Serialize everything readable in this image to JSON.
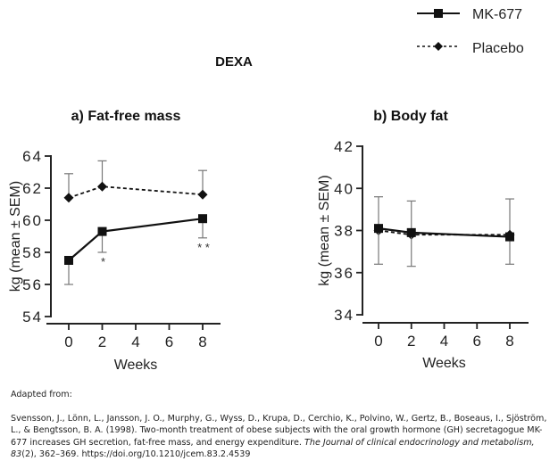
{
  "main_title": "DEXA",
  "legend": [
    {
      "name": "MK-677",
      "style": "solid",
      "marker": "square"
    },
    {
      "name": "Placebo",
      "style": "dashed",
      "marker": "diamond"
    }
  ],
  "chart_data": [
    {
      "type": "line",
      "title": "a)  Fat-free mass",
      "xlabel": "Weeks",
      "ylabel": "kg (mean ± SEM)",
      "x": [
        0,
        2,
        8
      ],
      "xticks": [
        0,
        2,
        4,
        6,
        8
      ],
      "xlim": [
        0,
        8
      ],
      "yticks": [
        54,
        56,
        58,
        60,
        62,
        64
      ],
      "ylim": [
        54,
        64
      ],
      "grid": false,
      "series": [
        {
          "name": "MK-677",
          "values": [
            57.5,
            59.3,
            60.1
          ],
          "error_low": [
            56.0,
            58.0,
            58.9
          ],
          "error_high": [
            null,
            null,
            null
          ]
        },
        {
          "name": "Placebo",
          "values": [
            61.4,
            62.1,
            61.6
          ],
          "error_low": [
            null,
            null,
            null
          ],
          "error_high": [
            62.9,
            63.7,
            63.1
          ]
        }
      ],
      "annotations": [
        {
          "x": 2,
          "text": "*"
        },
        {
          "x": 8,
          "text": "* *"
        }
      ]
    },
    {
      "type": "line",
      "title": "b)  Body fat",
      "xlabel": "Weeks",
      "ylabel": "kg (mean ± SEM)",
      "x": [
        0,
        2,
        8
      ],
      "xticks": [
        0,
        2,
        4,
        6,
        8
      ],
      "xlim": [
        0,
        8
      ],
      "yticks": [
        34,
        36,
        38,
        40,
        42
      ],
      "ylim": [
        34,
        42
      ],
      "grid": false,
      "series": [
        {
          "name": "MK-677",
          "values": [
            38.1,
            37.9,
            37.7
          ],
          "error_low": [
            36.4,
            36.3,
            36.4
          ],
          "error_high": [
            null,
            null,
            null
          ]
        },
        {
          "name": "Placebo",
          "values": [
            38.0,
            37.8,
            37.8
          ],
          "error_low": [
            null,
            null,
            null
          ],
          "error_high": [
            39.6,
            39.4,
            39.5
          ]
        }
      ],
      "annotations": []
    }
  ],
  "citation": {
    "adapted_from": "Adapted from:",
    "text_plain": "Svensson, J., Lönn, L., Jansson, J. O., Murphy, G., Wyss, D., Krupa, D., Cerchio, K., Polvino, W., Gertz, B., Boseaus, I., Sjöström, L., & Bengtsson, B. A. (1998). Two-month treatment of obese subjects with the oral growth hormone (GH) secretagogue MK-677 increases GH secretion, fat-free mass, and energy expenditure. ",
    "journal_italic": "The Journal of clinical endocrinology and metabolism, 83",
    "issue_pages": "(2), 362–369. ",
    "doi": "https://doi.org/10.1210/jcem.83.2.4539"
  }
}
